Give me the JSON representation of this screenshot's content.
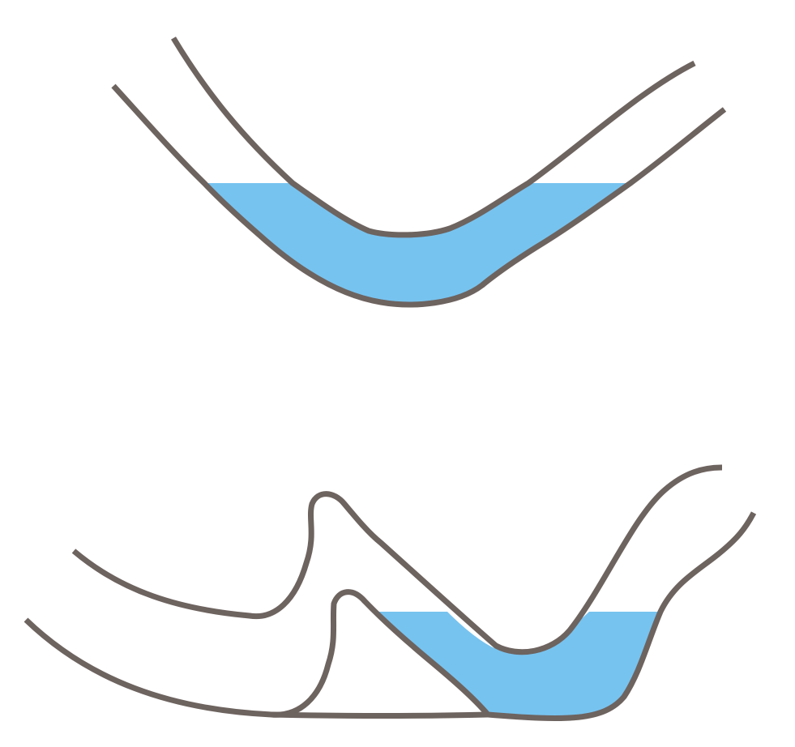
{
  "colors": {
    "pipe_wall": "#6d635f",
    "water": "#77c3ef",
    "background": "#ffffff"
  },
  "figures": [
    {
      "name": "u-shaped-trap",
      "contains_water": true
    },
    {
      "name": "drain-trap-with-vent-loop",
      "contains_water": true
    }
  ]
}
